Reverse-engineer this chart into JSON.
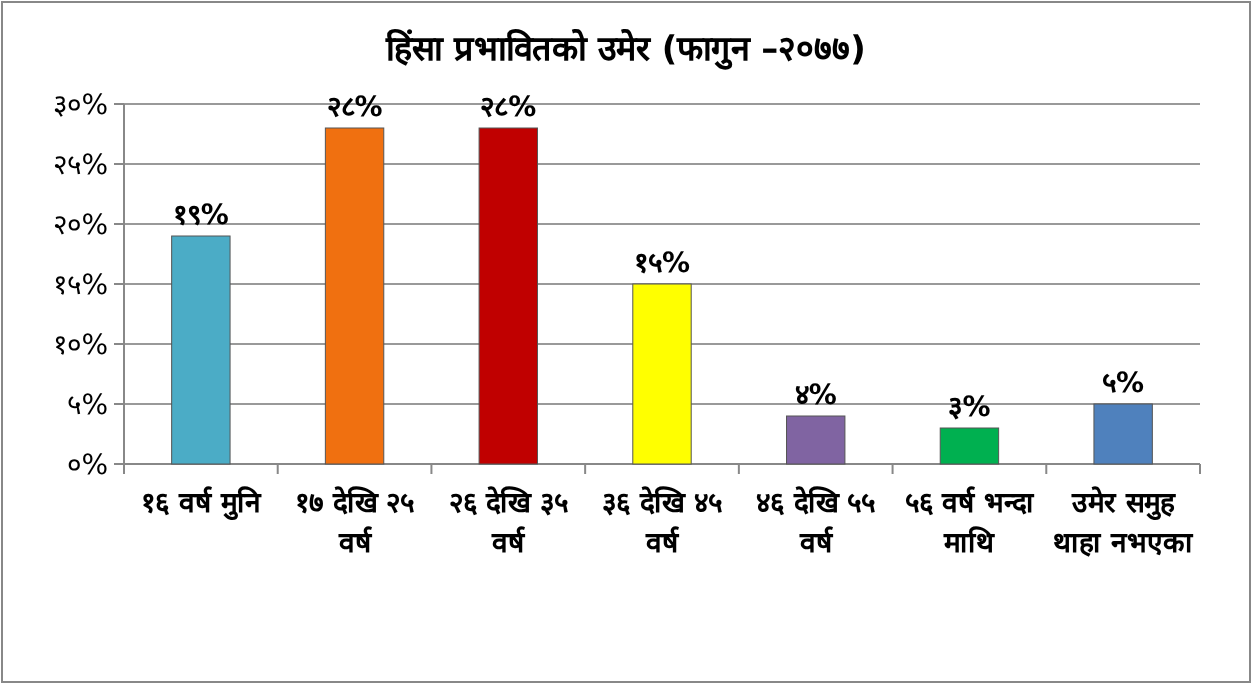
{
  "chart_data": {
    "type": "bar",
    "title": "हिंसा प्रभावितको उमेर (फागुन –२०७७)",
    "categories": [
      "१६ वर्ष मुनि",
      "१७ देखि २५ वर्ष",
      "२६ देखि ३५ वर्ष",
      "३६ देखि ४५ वर्ष",
      "४६ देखि ५५ वर्ष",
      "५६ वर्ष भन्दा माथि",
      "उमेर समुह थाहा नभएका"
    ],
    "values": [
      19,
      28,
      28,
      15,
      4,
      3,
      5
    ],
    "value_labels": [
      "१९%",
      "२८%",
      "२८%",
      "१५%",
      "४%",
      "३%",
      "५%"
    ],
    "colors": [
      "#4bacc6",
      "#f07010",
      "#c00000",
      "#ffff00",
      "#8064a2",
      "#00b050",
      "#4f81bd"
    ],
    "ylim": [
      0,
      30
    ],
    "yticks": [
      {
        "value": 0,
        "label": "०%"
      },
      {
        "value": 5,
        "label": "५%"
      },
      {
        "value": 10,
        "label": "१०%"
      },
      {
        "value": 15,
        "label": "१५%"
      },
      {
        "value": 20,
        "label": "२०%"
      },
      {
        "value": 25,
        "label": "२५%"
      },
      {
        "value": 30,
        "label": "३०%"
      }
    ],
    "grid": "y"
  }
}
